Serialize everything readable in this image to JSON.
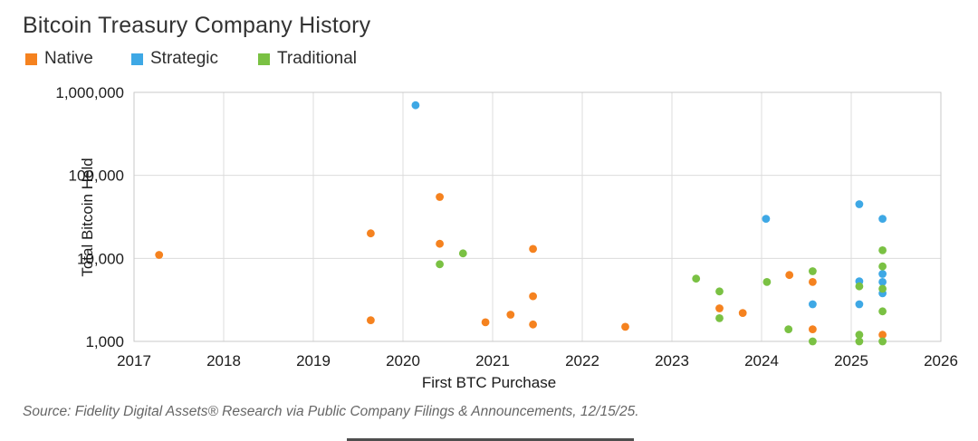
{
  "title": "Bitcoin Treasury Company History",
  "source": "Source: Fidelity Digital Assets® Research via Public Company Filings & Announcements, 12/15/25.",
  "chart_data": {
    "type": "scatter",
    "title": "Bitcoin Treasury Company History",
    "xlabel": "First BTC Purchase",
    "ylabel": "Total Bitcoin Held",
    "x_range": [
      2017,
      2026
    ],
    "y_range": [
      1000,
      1000000
    ],
    "y_scale": "log",
    "grid": true,
    "legend_position": "top-left",
    "x_ticks": [
      2017,
      2018,
      2019,
      2020,
      2021,
      2022,
      2023,
      2024,
      2025,
      2026
    ],
    "y_ticks": [
      {
        "value": 1000,
        "label": "1,000"
      },
      {
        "value": 10000,
        "label": "10,000"
      },
      {
        "value": 100000,
        "label": "100,000"
      },
      {
        "value": 1000000,
        "label": "1,000,000"
      }
    ],
    "series": [
      {
        "name": "Native",
        "color": "#F5821F",
        "points": [
          [
            2017.28,
            11000
          ],
          [
            2019.64,
            20000
          ],
          [
            2019.64,
            1800
          ],
          [
            2020.41,
            55000
          ],
          [
            2020.41,
            15000
          ],
          [
            2020.92,
            1700
          ],
          [
            2021.2,
            2100
          ],
          [
            2021.45,
            13000
          ],
          [
            2021.45,
            3500
          ],
          [
            2021.45,
            1600
          ],
          [
            2022.48,
            1500
          ],
          [
            2023.53,
            2500
          ],
          [
            2023.79,
            2200
          ],
          [
            2024.31,
            6300
          ],
          [
            2024.57,
            5200
          ],
          [
            2024.57,
            1400
          ],
          [
            2025.35,
            1200
          ]
        ]
      },
      {
        "name": "Strategic",
        "color": "#3EA8E5",
        "points": [
          [
            2020.14,
            700000
          ],
          [
            2024.05,
            30000
          ],
          [
            2024.57,
            2800
          ],
          [
            2025.09,
            45000
          ],
          [
            2025.09,
            5300
          ],
          [
            2025.09,
            2800
          ],
          [
            2025.35,
            30000
          ],
          [
            2025.35,
            6500
          ],
          [
            2025.35,
            5200
          ],
          [
            2025.35,
            3800
          ]
        ]
      },
      {
        "name": "Traditional",
        "color": "#7AC143",
        "points": [
          [
            2020.41,
            8500
          ],
          [
            2020.67,
            11500
          ],
          [
            2023.27,
            5700
          ],
          [
            2023.53,
            4000
          ],
          [
            2023.53,
            1900
          ],
          [
            2024.06,
            5200
          ],
          [
            2024.3,
            1400
          ],
          [
            2024.57,
            7000
          ],
          [
            2024.57,
            1000
          ],
          [
            2025.09,
            4600
          ],
          [
            2025.09,
            1200
          ],
          [
            2025.09,
            1000
          ],
          [
            2025.35,
            12500
          ],
          [
            2025.35,
            8000
          ],
          [
            2025.35,
            4300
          ],
          [
            2025.35,
            2300
          ],
          [
            2025.35,
            1000
          ]
        ]
      }
    ]
  }
}
